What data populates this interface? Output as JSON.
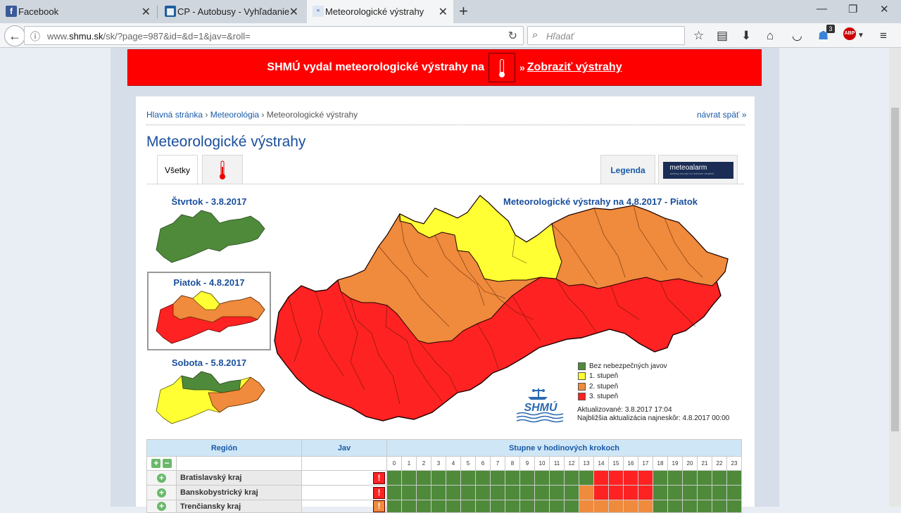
{
  "browser": {
    "tabs": [
      {
        "label": "Facebook",
        "icon": "facebook-icon"
      },
      {
        "label": "CP - Autobusy - Vyhľadanie",
        "icon": "cp-icon"
      },
      {
        "label": "Meteorologické výstrahy",
        "icon": "shmu-icon"
      }
    ],
    "url_prefix": "www.",
    "url_domain": "shmu.sk",
    "url_path": "/sk/?page=987&id=&d=1&jav=&roll=",
    "search_placeholder": "Hľadať",
    "notification_count": "3",
    "abp_label": "ABP"
  },
  "banner": {
    "text": "SHMÚ vydal meteorologické výstrahy na",
    "link_prefix": "»",
    "link": "Zobraziť výstrahy"
  },
  "breadcrumb": {
    "items": [
      "Hlavná stránka",
      "Meteorológia",
      "Meteorologické výstrahy"
    ],
    "separator": "›",
    "back": "návrat späť »"
  },
  "page_title": "Meteorologické výstrahy",
  "tabs": {
    "all": "Všetky",
    "legend": "Legenda",
    "meteoalarm": "meteoalarm",
    "meteoalarm_sub": "alerting europe for extreme weather"
  },
  "thumbnails": [
    {
      "title": "Štvrtok - 3.8.2017"
    },
    {
      "title": "Piatok - 4.8.2017"
    },
    {
      "title": "Sobota - 5.8.2017"
    }
  ],
  "main_map": {
    "title": "Meteorologické výstrahy na 4.8.2017 - Piatok",
    "logo": "SHMÚ"
  },
  "legend": [
    {
      "label": "Bez nebezpečných javov",
      "color": "#4e8a3a"
    },
    {
      "label": "1. stupeň",
      "color": "#ffff33"
    },
    {
      "label": "2. stupeň",
      "color": "#f08a3c"
    },
    {
      "label": "3. stupeň",
      "color": "#ff2222"
    }
  ],
  "updated": "Aktualizované: 3.8.2017 17:04",
  "next_update": "Najbližšia aktualizácia najneskôr: 4.8.2017 00:00",
  "table": {
    "headers": {
      "region": "Región",
      "jav": "Jav",
      "steps": "Stupne v hodinových krokoch"
    },
    "hours": [
      "0",
      "1",
      "2",
      "3",
      "4",
      "5",
      "6",
      "7",
      "8",
      "9",
      "10",
      "11",
      "12",
      "13",
      "14",
      "15",
      "16",
      "17",
      "18",
      "19",
      "20",
      "21",
      "22",
      "23"
    ],
    "rows": [
      {
        "name": "Bratislavský kraj",
        "levels": [
          0,
          0,
          0,
          0,
          0,
          0,
          0,
          0,
          0,
          0,
          0,
          0,
          0,
          0,
          3,
          3,
          3,
          3,
          0,
          0,
          0,
          0,
          0,
          0
        ]
      },
      {
        "name": "Banskobystrický kraj",
        "levels": [
          0,
          0,
          0,
          0,
          0,
          0,
          0,
          0,
          0,
          0,
          0,
          0,
          0,
          2,
          3,
          3,
          3,
          3,
          0,
          0,
          0,
          0,
          0,
          0
        ]
      },
      {
        "name": "Trenčiansky kraj",
        "levels": [
          0,
          0,
          0,
          0,
          0,
          0,
          0,
          0,
          0,
          0,
          0,
          0,
          0,
          2,
          2,
          2,
          2,
          2,
          0,
          0,
          0,
          0,
          0,
          0
        ]
      }
    ],
    "level_colors": [
      "#4e8a3a",
      "#ffff33",
      "#f08a3c",
      "#ff2222"
    ],
    "warn_glyph": "!"
  }
}
